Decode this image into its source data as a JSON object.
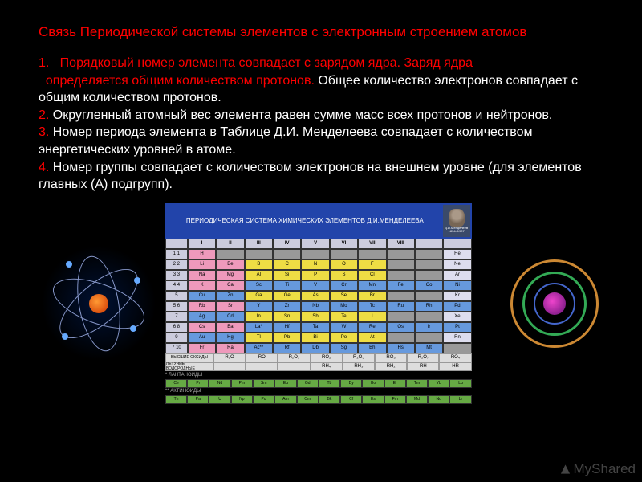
{
  "title": "Связь Периодической системы элементов с электронным строением атомов",
  "items": [
    {
      "num": "1.",
      "lead": "   Порядковый номер элемента совпадает с зарядом ядра. Заряд ядра\n  определяется общим количеством протонов.",
      "rest": " Общее количество электронов совпадает с общим количеством протонов."
    },
    {
      "num": "2.",
      "lead": "",
      "rest": " Округленный атомный вес элемента равен сумме масс всех протонов и нейтронов."
    },
    {
      "num": "3.",
      "lead": "",
      "rest": " Номер периода элемента в Таблице Д.И. Менделеева совпадает с количеством энергетических уровней в атоме."
    },
    {
      "num": "4.",
      "lead": "",
      "rest": " Номер группы совпадает с количеством электронов на внешнем уровне (для элементов главных (А) подгрупп)."
    }
  ],
  "ptable": {
    "header_text": "ПЕРИОДИЧЕСКАЯ СИСТЕМА ХИМИЧЕСКИХ ЭЛЕМЕНТОВ Д.И.МЕНДЕЛЕЕВА",
    "portrait_caption": "Д.И.Менделеев 1834–1907",
    "group_label": "Г Р У П П Ы",
    "period_label": "Пери оды",
    "row_label": "Ряды",
    "groups": [
      "I",
      "II",
      "III",
      "IV",
      "V",
      "VI",
      "VII",
      "VIII"
    ],
    "rows": [
      {
        "period": "1",
        "r": "1",
        "cells": [
          {
            "t": "H",
            "c": "c-pink"
          },
          {
            "t": "",
            "c": "c-grey"
          },
          {
            "t": "",
            "c": "c-grey"
          },
          {
            "t": "",
            "c": "c-grey"
          },
          {
            "t": "",
            "c": "c-grey"
          },
          {
            "t": "",
            "c": "c-grey"
          },
          {
            "t": "",
            "c": "c-grey"
          },
          {
            "t": "",
            "c": "c-grey"
          },
          {
            "t": "",
            "c": "c-grey"
          },
          {
            "t": "He",
            "c": "c-white"
          }
        ]
      },
      {
        "period": "2",
        "r": "2",
        "cells": [
          {
            "t": "Li",
            "c": "c-pink"
          },
          {
            "t": "Be",
            "c": "c-pink"
          },
          {
            "t": "B",
            "c": "c-yellow"
          },
          {
            "t": "C",
            "c": "c-yellow"
          },
          {
            "t": "N",
            "c": "c-yellow"
          },
          {
            "t": "O",
            "c": "c-yellow"
          },
          {
            "t": "F",
            "c": "c-yellow"
          },
          {
            "t": "",
            "c": "c-grey"
          },
          {
            "t": "",
            "c": "c-grey"
          },
          {
            "t": "Ne",
            "c": "c-white"
          }
        ]
      },
      {
        "period": "3",
        "r": "3",
        "cells": [
          {
            "t": "Na",
            "c": "c-pink"
          },
          {
            "t": "Mg",
            "c": "c-pink"
          },
          {
            "t": "Al",
            "c": "c-yellow"
          },
          {
            "t": "Si",
            "c": "c-yellow"
          },
          {
            "t": "P",
            "c": "c-yellow"
          },
          {
            "t": "S",
            "c": "c-yellow"
          },
          {
            "t": "Cl",
            "c": "c-yellow"
          },
          {
            "t": "",
            "c": "c-grey"
          },
          {
            "t": "",
            "c": "c-grey"
          },
          {
            "t": "Ar",
            "c": "c-white"
          }
        ]
      },
      {
        "period": "4",
        "r": "4",
        "cells": [
          {
            "t": "K",
            "c": "c-pink"
          },
          {
            "t": "Ca",
            "c": "c-pink"
          },
          {
            "t": "Sc",
            "c": "c-blue"
          },
          {
            "t": "Ti",
            "c": "c-blue"
          },
          {
            "t": "V",
            "c": "c-blue"
          },
          {
            "t": "Cr",
            "c": "c-blue"
          },
          {
            "t": "Mn",
            "c": "c-blue"
          },
          {
            "t": "Fe",
            "c": "c-blue"
          },
          {
            "t": "Co",
            "c": "c-blue"
          },
          {
            "t": "Ni",
            "c": "c-blue"
          }
        ]
      },
      {
        "period": "",
        "r": "5",
        "cells": [
          {
            "t": "Cu",
            "c": "c-blue"
          },
          {
            "t": "Zn",
            "c": "c-blue"
          },
          {
            "t": "Ga",
            "c": "c-yellow"
          },
          {
            "t": "Ge",
            "c": "c-yellow"
          },
          {
            "t": "As",
            "c": "c-yellow"
          },
          {
            "t": "Se",
            "c": "c-yellow"
          },
          {
            "t": "Br",
            "c": "c-yellow"
          },
          {
            "t": "",
            "c": "c-grey"
          },
          {
            "t": "",
            "c": "c-grey"
          },
          {
            "t": "Kr",
            "c": "c-white"
          }
        ]
      },
      {
        "period": "5",
        "r": "6",
        "cells": [
          {
            "t": "Rb",
            "c": "c-pink"
          },
          {
            "t": "Sr",
            "c": "c-pink"
          },
          {
            "t": "Y",
            "c": "c-blue"
          },
          {
            "t": "Zr",
            "c": "c-blue"
          },
          {
            "t": "Nb",
            "c": "c-blue"
          },
          {
            "t": "Mo",
            "c": "c-blue"
          },
          {
            "t": "Tc",
            "c": "c-blue"
          },
          {
            "t": "Ru",
            "c": "c-blue"
          },
          {
            "t": "Rh",
            "c": "c-blue"
          },
          {
            "t": "Pd",
            "c": "c-blue"
          }
        ]
      },
      {
        "period": "",
        "r": "7",
        "cells": [
          {
            "t": "Ag",
            "c": "c-blue"
          },
          {
            "t": "Cd",
            "c": "c-blue"
          },
          {
            "t": "In",
            "c": "c-yellow"
          },
          {
            "t": "Sn",
            "c": "c-yellow"
          },
          {
            "t": "Sb",
            "c": "c-yellow"
          },
          {
            "t": "Te",
            "c": "c-yellow"
          },
          {
            "t": "I",
            "c": "c-yellow"
          },
          {
            "t": "",
            "c": "c-grey"
          },
          {
            "t": "",
            "c": "c-grey"
          },
          {
            "t": "Xe",
            "c": "c-white"
          }
        ]
      },
      {
        "period": "6",
        "r": "8",
        "cells": [
          {
            "t": "Cs",
            "c": "c-pink"
          },
          {
            "t": "Ba",
            "c": "c-pink"
          },
          {
            "t": "La*",
            "c": "c-blue"
          },
          {
            "t": "Hf",
            "c": "c-blue"
          },
          {
            "t": "Ta",
            "c": "c-blue"
          },
          {
            "t": "W",
            "c": "c-blue"
          },
          {
            "t": "Re",
            "c": "c-blue"
          },
          {
            "t": "Os",
            "c": "c-blue"
          },
          {
            "t": "Ir",
            "c": "c-blue"
          },
          {
            "t": "Pt",
            "c": "c-blue"
          }
        ]
      },
      {
        "period": "",
        "r": "9",
        "cells": [
          {
            "t": "Au",
            "c": "c-blue"
          },
          {
            "t": "Hg",
            "c": "c-blue"
          },
          {
            "t": "Tl",
            "c": "c-yellow"
          },
          {
            "t": "Pb",
            "c": "c-yellow"
          },
          {
            "t": "Bi",
            "c": "c-yellow"
          },
          {
            "t": "Po",
            "c": "c-yellow"
          },
          {
            "t": "At",
            "c": "c-yellow"
          },
          {
            "t": "",
            "c": "c-grey"
          },
          {
            "t": "",
            "c": "c-grey"
          },
          {
            "t": "Rn",
            "c": "c-white"
          }
        ]
      },
      {
        "period": "7",
        "r": "10",
        "cells": [
          {
            "t": "Fr",
            "c": "c-pink"
          },
          {
            "t": "Ra",
            "c": "c-pink"
          },
          {
            "t": "Ac**",
            "c": "c-blue"
          },
          {
            "t": "Rf",
            "c": "c-blue"
          },
          {
            "t": "Db",
            "c": "c-blue"
          },
          {
            "t": "Sg",
            "c": "c-blue"
          },
          {
            "t": "Bh",
            "c": "c-blue"
          },
          {
            "t": "Hs",
            "c": "c-blue"
          },
          {
            "t": "Mt",
            "c": "c-blue"
          },
          {
            "t": "",
            "c": "c-grey"
          }
        ]
      }
    ],
    "oxides_label": "ВЫСШИЕ ОКСИДЫ",
    "oxides": [
      "R₂O",
      "RO",
      "R₂O₃",
      "RO₂",
      "R₂O₅",
      "RO₃",
      "R₂O₇",
      "RO₄"
    ],
    "hydrides_label": "ЛЕТУЧИЕ ВОДОРОДНЫЕ",
    "hydrides": [
      "",
      "",
      "",
      "RH₄",
      "RH₃",
      "RH₂",
      "RH",
      "HR"
    ],
    "lanth_label": "* ЛАНТАНОИДЫ",
    "lanthanides": [
      "Ce",
      "Pr",
      "Nd",
      "Pm",
      "Sm",
      "Eu",
      "Gd",
      "Tb",
      "Dy",
      "Ho",
      "Er",
      "Tm",
      "Yb",
      "Lu"
    ],
    "act_label": "** АКТИНОИДЫ",
    "actinides": [
      "Th",
      "Pa",
      "U",
      "Np",
      "Pu",
      "Am",
      "Cm",
      "Bk",
      "Cf",
      "Es",
      "Fm",
      "Md",
      "No",
      "Lr"
    ]
  },
  "watermark": "MyShared",
  "colors": {
    "bg": "#000000",
    "title": "#ff0000",
    "text": "#ffffff",
    "accent_num": "#ff0000"
  }
}
